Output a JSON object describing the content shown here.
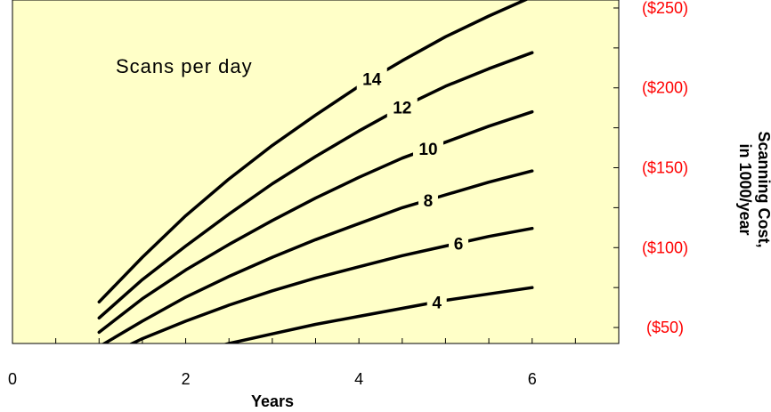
{
  "chart_data": {
    "type": "line",
    "annotation": "Scans per day",
    "xlabel": "Years",
    "ylabel_line1": "Scanning Cost,",
    "ylabel_line2": "in 1000/year",
    "xlim": [
      0,
      7
    ],
    "ylim": [
      40,
      255
    ],
    "x_ticks": [
      0,
      2,
      4,
      6
    ],
    "x_tick_labels": [
      "0",
      "2",
      "4",
      "6"
    ],
    "y_ticks": [
      50,
      100,
      150,
      200,
      250
    ],
    "y_tick_labels": [
      "($50)",
      "($100)",
      "($150)",
      "($200)",
      "($250)"
    ],
    "grid": false,
    "colors": {
      "plot_background": "#FFFFC8",
      "line": "#000000",
      "right_axis_labels": "#FF0000"
    },
    "series": [
      {
        "name": "4",
        "x": [
          1.0,
          1.5,
          2.0,
          2.5,
          3.0,
          3.5,
          4.0,
          4.5,
          5.0,
          5.5,
          6.0
        ],
        "values": [
          15,
          25,
          33,
          40,
          46,
          52,
          57,
          62,
          67,
          71,
          75
        ],
        "label_x": 4.9
      },
      {
        "name": "6",
        "x": [
          1.0,
          1.5,
          2.0,
          2.5,
          3.0,
          3.5,
          4.0,
          4.5,
          5.0,
          5.5,
          6.0
        ],
        "values": [
          30,
          43,
          54,
          64,
          73,
          81,
          88,
          95,
          101,
          107,
          112
        ],
        "label_x": 5.15
      },
      {
        "name": "8",
        "x": [
          1.0,
          1.5,
          2.0,
          2.5,
          3.0,
          3.5,
          4.0,
          4.5,
          5.0,
          5.5,
          6.0
        ],
        "values": [
          38,
          54,
          69,
          82,
          94,
          105,
          115,
          125,
          133,
          141,
          148
        ],
        "label_x": 4.8
      },
      {
        "name": "10",
        "x": [
          1.0,
          1.5,
          2.0,
          2.5,
          3.0,
          3.5,
          4.0,
          4.5,
          5.0,
          5.5,
          6.0
        ],
        "values": [
          47,
          68,
          86,
          102,
          117,
          131,
          144,
          156,
          166,
          176,
          185
        ],
        "label_x": 4.8
      },
      {
        "name": "12",
        "x": [
          1.0,
          1.5,
          2.0,
          2.5,
          3.0,
          3.5,
          4.0,
          4.5,
          5.0,
          5.5,
          6.0
        ],
        "values": [
          56,
          80,
          101,
          121,
          140,
          157,
          173,
          188,
          201,
          212,
          222
        ],
        "label_x": 4.5
      },
      {
        "name": "14",
        "x": [
          1.0,
          1.5,
          2.0,
          2.5,
          3.0,
          3.5,
          4.0,
          4.5,
          5.0,
          5.5,
          6.0
        ],
        "values": [
          66,
          94,
          120,
          143,
          164,
          183,
          201,
          217,
          232,
          245,
          257
        ],
        "label_x": 4.15
      }
    ]
  }
}
